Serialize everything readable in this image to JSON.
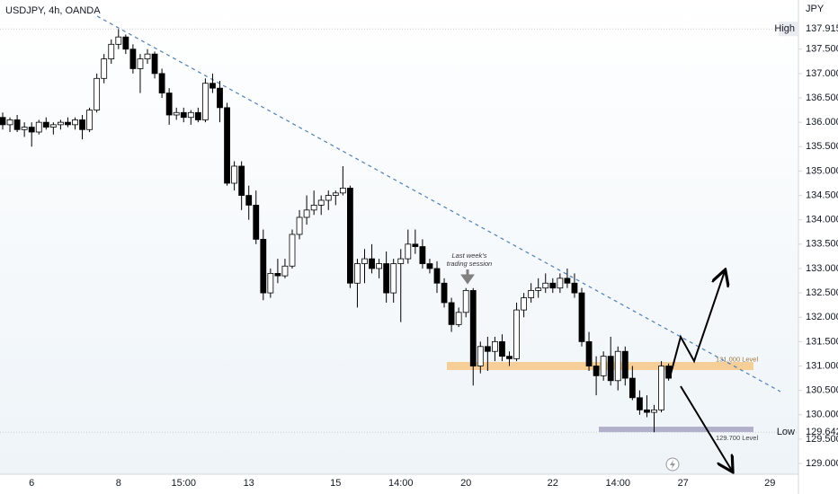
{
  "chart_data": {
    "type": "candlestick",
    "title": "USDJPY, 4h, OANDA",
    "y_axis_label": "JPY",
    "categories": [
      null,
      null,
      null,
      null,
      "6",
      null,
      null,
      null,
      null,
      null,
      null,
      null,
      null,
      null,
      null,
      null,
      "8",
      null,
      null,
      null,
      null,
      null,
      null,
      null,
      null,
      "15:00",
      null,
      null,
      null,
      null,
      null,
      null,
      null,
      null,
      "13",
      null,
      null,
      null,
      null,
      null,
      null,
      null,
      null,
      null,
      null,
      null,
      "15",
      null,
      null,
      null,
      null,
      null,
      null,
      null,
      null,
      "14:00",
      null,
      null,
      null,
      null,
      null,
      null,
      null,
      null,
      "20",
      null,
      null,
      null,
      null,
      null,
      null,
      null,
      null,
      null,
      null,
      null,
      "22",
      null,
      null,
      null,
      null,
      null,
      null,
      null,
      null,
      "14:00",
      null,
      null,
      null,
      null,
      null,
      null,
      null,
      null,
      "27",
      null,
      null,
      null,
      null,
      null,
      null,
      null,
      null,
      null,
      null,
      null,
      "29",
      null,
      null,
      null
    ],
    "open": [
      136.1,
      135.95,
      136.05,
      135.85,
      135.9,
      135.8,
      136.0,
      135.9,
      135.95,
      136.0,
      135.95,
      136.05,
      135.85,
      136.25,
      136.9,
      137.3,
      137.6,
      137.75,
      137.5,
      137.1,
      137.3,
      137.4,
      137.0,
      136.6,
      136.15,
      136.2,
      136.1,
      136.2,
      136.05,
      136.8,
      136.7,
      136.3,
      134.75,
      135.1,
      134.5,
      134.3,
      133.6,
      132.5,
      132.9,
      132.85,
      133.05,
      133.7,
      134.05,
      134.2,
      134.3,
      134.4,
      134.5,
      134.55,
      134.65,
      132.7,
      133.1,
      133.2,
      133.0,
      133.1,
      132.5,
      133.1,
      133.2,
      133.5,
      133.45,
      133.1,
      133.0,
      132.7,
      132.3,
      131.85,
      132.1,
      132.55,
      131.0,
      131.4,
      131.3,
      131.5,
      131.2,
      131.15,
      132.15,
      132.4,
      132.55,
      132.6,
      132.7,
      132.6,
      132.8,
      132.7,
      132.5,
      131.5,
      131.0,
      130.8,
      131.2,
      130.7,
      131.3,
      130.75,
      130.35,
      130.1,
      130.05,
      130.1,
      131.0,
      null,
      null,
      null,
      null,
      null,
      null,
      null,
      null,
      null,
      null,
      null,
      null,
      null,
      null,
      null,
      null,
      null
    ],
    "high": [
      136.2,
      136.1,
      136.15,
      136.0,
      136.0,
      136.05,
      136.1,
      136.0,
      136.05,
      136.1,
      136.1,
      136.15,
      136.3,
      137.0,
      137.4,
      137.7,
      137.915,
      137.8,
      137.6,
      137.4,
      137.5,
      137.45,
      137.1,
      136.7,
      136.3,
      136.3,
      136.25,
      136.3,
      136.9,
      137.0,
      136.85,
      136.4,
      135.2,
      135.2,
      134.7,
      134.6,
      133.8,
      133.0,
      133.2,
      133.2,
      133.8,
      134.2,
      134.5,
      134.6,
      134.5,
      134.6,
      134.6,
      135.1,
      134.7,
      133.2,
      133.4,
      133.5,
      133.2,
      133.35,
      133.2,
      133.4,
      133.8,
      133.8,
      133.6,
      133.2,
      133.15,
      132.8,
      132.4,
      132.2,
      132.6,
      132.6,
      131.5,
      131.6,
      131.6,
      131.65,
      131.3,
      132.3,
      132.5,
      132.7,
      132.8,
      132.9,
      132.8,
      132.9,
      133.0,
      132.9,
      132.6,
      131.7,
      131.2,
      131.3,
      131.6,
      131.4,
      131.4,
      131.0,
      130.5,
      130.4,
      130.2,
      131.1,
      131.05,
      null,
      null,
      null,
      null,
      null,
      null,
      null,
      null,
      null,
      null,
      null,
      null,
      null,
      null,
      null,
      null,
      null
    ],
    "low": [
      135.85,
      135.8,
      135.8,
      135.7,
      135.5,
      135.75,
      135.85,
      135.75,
      135.85,
      135.9,
      135.85,
      135.65,
      135.8,
      136.2,
      136.8,
      137.2,
      137.5,
      137.4,
      137.0,
      136.6,
      137.2,
      136.9,
      136.5,
      135.95,
      136.05,
      136.0,
      135.95,
      136.0,
      136.0,
      136.6,
      136.0,
      134.7,
      134.6,
      134.2,
      134.0,
      133.5,
      132.35,
      132.4,
      132.7,
      132.8,
      133.0,
      133.6,
      133.9,
      134.1,
      134.1,
      134.2,
      134.3,
      134.5,
      132.6,
      132.2,
      132.7,
      132.9,
      132.8,
      132.3,
      132.3,
      131.9,
      133.1,
      133.3,
      133.0,
      132.9,
      132.5,
      132.2,
      131.7,
      131.8,
      132.0,
      130.6,
      130.85,
      130.9,
      131.1,
      131.1,
      131.0,
      131.1,
      132.0,
      132.3,
      132.4,
      132.5,
      132.5,
      132.5,
      132.6,
      132.4,
      131.4,
      130.9,
      130.4,
      130.7,
      130.6,
      130.5,
      130.6,
      130.3,
      130.0,
      129.95,
      129.642,
      130.05,
      130.7,
      null,
      null,
      null,
      null,
      null,
      null,
      null,
      null,
      null,
      null,
      null,
      null,
      null,
      null,
      null,
      null,
      null
    ],
    "close": [
      135.95,
      136.05,
      135.85,
      135.9,
      135.8,
      136.0,
      135.9,
      135.95,
      136.0,
      135.95,
      136.05,
      135.85,
      136.25,
      136.9,
      137.3,
      137.6,
      137.75,
      137.5,
      137.1,
      137.3,
      137.4,
      137.0,
      136.6,
      136.15,
      136.2,
      136.1,
      136.2,
      136.05,
      136.8,
      136.7,
      136.3,
      134.75,
      135.1,
      134.5,
      134.3,
      133.6,
      132.5,
      132.9,
      132.85,
      133.05,
      133.7,
      134.05,
      134.2,
      134.3,
      134.4,
      134.5,
      134.55,
      134.65,
      132.7,
      133.1,
      133.2,
      133.0,
      133.1,
      132.5,
      133.1,
      133.2,
      133.5,
      133.45,
      133.1,
      133.0,
      132.7,
      132.3,
      131.85,
      132.1,
      132.55,
      131.0,
      131.4,
      131.3,
      131.5,
      131.2,
      131.15,
      132.15,
      132.4,
      132.55,
      132.6,
      132.7,
      132.6,
      132.8,
      132.7,
      132.5,
      131.5,
      131.0,
      130.8,
      131.2,
      130.7,
      131.3,
      130.75,
      130.35,
      130.1,
      130.05,
      130.1,
      131.0,
      130.75,
      null,
      null,
      null,
      null,
      null,
      null,
      null,
      null,
      null,
      null,
      null,
      null,
      null,
      null,
      null,
      null,
      null
    ],
    "up_color": "#ffffff",
    "down_color": "#000000",
    "ylim": [
      128.78,
      138.14
    ],
    "yticks": [
      {
        "value": 129,
        "label": "129.000"
      },
      {
        "value": 129.5,
        "label": "129.500"
      },
      {
        "value": 130,
        "label": "130.000"
      },
      {
        "value": 130.5,
        "label": "130.500"
      },
      {
        "value": 131,
        "label": "131.000"
      },
      {
        "value": 131.5,
        "label": "131.500"
      },
      {
        "value": 132,
        "label": "132.000"
      },
      {
        "value": 132.5,
        "label": "132.500"
      },
      {
        "value": 133,
        "label": "133.000"
      },
      {
        "value": 133.5,
        "label": "133.500"
      },
      {
        "value": 134,
        "label": "134.000"
      },
      {
        "value": 134.5,
        "label": "134.500"
      },
      {
        "value": 135,
        "label": "135.000"
      },
      {
        "value": 135.5,
        "label": "135.500"
      },
      {
        "value": 136,
        "label": "136.000"
      },
      {
        "value": 136.5,
        "label": "136.500"
      },
      {
        "value": 137,
        "label": "137.000"
      },
      {
        "value": 137.5,
        "label": "137.500"
      }
    ],
    "grid": false,
    "high_marker": {
      "name": "High",
      "value": 137.915
    },
    "low_marker": {
      "name": "Low",
      "value": 129.642
    },
    "levels": [
      {
        "value": 131.0,
        "label": "131.000 Level",
        "color": "#f6c98c"
      },
      {
        "value": 129.7,
        "label": "129.700 Level",
        "color": "#a8a8c4"
      }
    ],
    "annotation": [
      "Last week's",
      "trading session"
    ]
  }
}
